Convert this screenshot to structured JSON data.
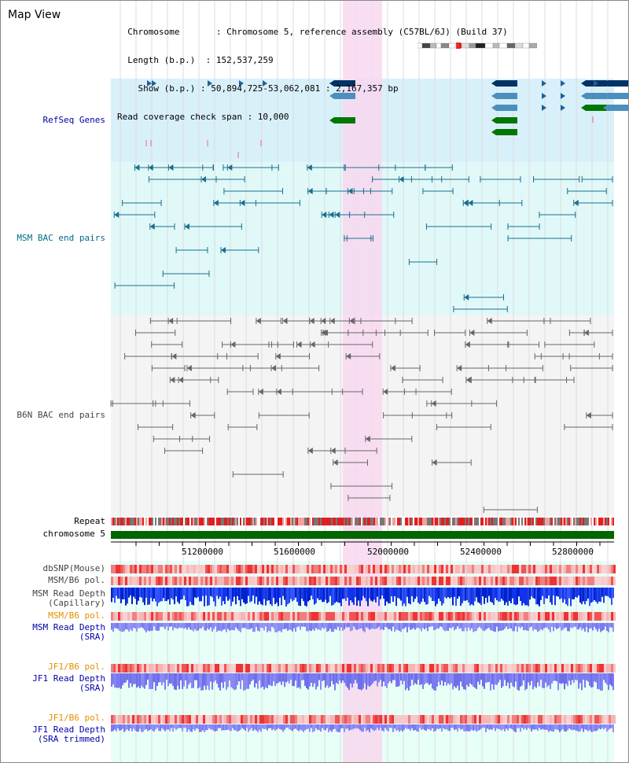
{
  "header": {
    "title": "Map View",
    "info_lines": [
      "  Chromosome       : Chromosome 5, reference assembly (C57BL/6J) (Build 37)",
      "  Length (b.p.)  : 152,537,259",
      "    Show (b.p.) : 50,894,725-53,062,081 : 2,167,357 bp",
      "Read coverage check span : 10,000"
    ]
  },
  "tracks": {
    "refseq": "RefSeq Genes",
    "msm_bac": "MSM BAC end pairs",
    "b6n_bac": "B6N BAC end pairs",
    "repeat": "Repeat",
    "chromosome": "chromosome 5",
    "dbsnp": "dbSNP(Mouse)",
    "msm_b6_pol": "MSM/B6 pol.",
    "msm_read_depth_cap": "MSM Read Depth\n(Capillary)",
    "msm_b6_pol2": "MSM/B6 pol.",
    "msm_read_depth_sra": "MSM Read Depth\n(SRA)",
    "jf1_b6_pol": "JF1/B6 pol.",
    "jf1_read_depth_sra": "JF1 Read Depth\n(SRA)",
    "jf1_b6_pol2": "JF1/B6 pol.",
    "jf1_read_depth_trim": "JF1 Read Depth\n(SRA trimmed)"
  },
  "axis": {
    "ticks": [
      "51200000",
      "51600000",
      "52000000",
      "52400000",
      "52800000"
    ]
  },
  "colors": {
    "highlight": "#f8d8f0",
    "refseq_bg": "#d8f0fa",
    "msm_bg": "#e0f8f8",
    "b6n_bg": "#f4f4f4",
    "lower_bg": "#e8fff8",
    "blue_label": "#0000aa",
    "teal_label": "#006a8a",
    "gray_label": "#444444",
    "orange_label": "#e39000"
  }
}
